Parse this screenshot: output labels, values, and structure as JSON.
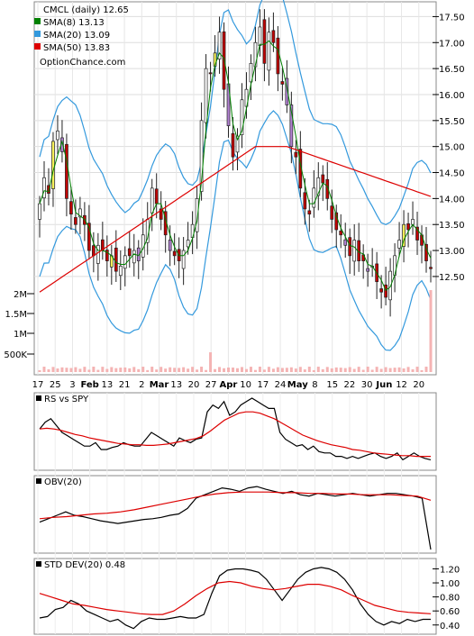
{
  "chart_data": {
    "type": "stock",
    "symbol": "CMCL",
    "title": "CMCL (daily) 12.65",
    "watermark": "OptionChance.com",
    "price_axis": {
      "ticks": [
        "17.50",
        "17.00",
        "16.50",
        "16.00",
        "15.50",
        "15.00",
        "14.50",
        "14.00",
        "13.50",
        "13.00",
        "12.50"
      ],
      "ylim": [
        12.1,
        17.75
      ]
    },
    "volume_axis": {
      "ticks": [
        "2M",
        "1.5M",
        "1M",
        "500K"
      ]
    },
    "x_tick_labels": [
      "17",
      "25",
      "3",
      "Feb",
      "13",
      "21",
      "2",
      "Mar",
      "13",
      "20",
      "27",
      "Apr",
      "10",
      "17",
      "24",
      "May",
      "8",
      "15",
      "22",
      "30",
      "Jun",
      "12",
      "20"
    ],
    "legend": [
      {
        "label": "SMA(8) 13.13",
        "color": "#008000"
      },
      {
        "label": "SMA(20) 13.09",
        "color": "#3399dd"
      },
      {
        "label": "SMA(50) 13.83",
        "color": "#dd0000"
      }
    ],
    "panels": [
      {
        "name": "RS vs SPY",
        "label": "RS vs SPY"
      },
      {
        "name": "OBV(20)",
        "label": "OBV(20)"
      },
      {
        "name": "STD DEV(20)",
        "label": "STD DEV(20) 0.48",
        "ticks": [
          "1.20",
          "1.00",
          "0.80",
          "0.60",
          "0.40"
        ],
        "ylim": [
          0.32,
          1.27
        ]
      }
    ],
    "closes": [
      13.9,
      14.4,
      14.1,
      15.1,
      15.3,
      14.9,
      14.0,
      13.7,
      13.5,
      13.8,
      13.5,
      13.0,
      12.9,
      13.1,
      13.0,
      12.8,
      12.9,
      12.6,
      12.7,
      12.9,
      12.9,
      13.0,
      12.8,
      13.3,
      13.6,
      14.2,
      13.9,
      13.6,
      13.3,
      13.0,
      12.9,
      12.8,
      13.0,
      13.2,
      13.5,
      14.0,
      15.5,
      16.5,
      16.4,
      16.8,
      17.2,
      16.1,
      15.4,
      14.8,
      15.2,
      15.9,
      16.1,
      16.6,
      17.0,
      17.3,
      16.6,
      17.2,
      17.0,
      16.4,
      16.2,
      15.8,
      15.0,
      14.8,
      14.2,
      13.8,
      13.7,
      14.2,
      14.4,
      14.3,
      14.0,
      13.6,
      13.4,
      13.3,
      13.1,
      12.9,
      13.2,
      12.8,
      12.8,
      12.6,
      12.7,
      12.4,
      12.2,
      12.1,
      12.6,
      12.9,
      13.2,
      13.5,
      13.4,
      13.6,
      13.2,
      13.1,
      12.8,
      12.65
    ],
    "rs_vs_spy": [
      0.55,
      0.65,
      0.7,
      0.6,
      0.5,
      0.45,
      0.4,
      0.35,
      0.3,
      0.3,
      0.35,
      0.25,
      0.25,
      0.28,
      0.3,
      0.35,
      0.32,
      0.3,
      0.3,
      0.4,
      0.5,
      0.45,
      0.4,
      0.35,
      0.3,
      0.42,
      0.38,
      0.35,
      0.4,
      0.42,
      0.8,
      0.9,
      0.85,
      0.95,
      0.75,
      0.8,
      0.9,
      0.95,
      1.0,
      0.95,
      0.9,
      0.85,
      0.85,
      0.5,
      0.4,
      0.35,
      0.3,
      0.32,
      0.25,
      0.3,
      0.22,
      0.2,
      0.2,
      0.15,
      0.15,
      0.12,
      0.15,
      0.12,
      0.15,
      0.18,
      0.2,
      0.15,
      0.12,
      0.15,
      0.2,
      0.1,
      0.15,
      0.2,
      0.15,
      0.12,
      0.1
    ],
    "rs_ma": [
      0.55,
      0.56,
      0.55,
      0.53,
      0.5,
      0.47,
      0.45,
      0.42,
      0.4,
      0.38,
      0.36,
      0.34,
      0.33,
      0.32,
      0.32,
      0.31,
      0.31,
      0.32,
      0.33,
      0.35,
      0.37,
      0.39,
      0.41,
      0.45,
      0.52,
      0.6,
      0.68,
      0.73,
      0.78,
      0.8,
      0.8,
      0.78,
      0.74,
      0.7,
      0.64,
      0.58,
      0.52,
      0.46,
      0.42,
      0.38,
      0.35,
      0.32,
      0.3,
      0.28,
      0.25,
      0.24,
      0.22,
      0.2,
      0.19,
      0.18,
      0.17,
      0.16,
      0.16,
      0.15,
      0.15,
      0.15
    ],
    "obv": [
      0.4,
      0.45,
      0.5,
      0.55,
      0.5,
      0.48,
      0.45,
      0.42,
      0.4,
      0.38,
      0.4,
      0.42,
      0.44,
      0.45,
      0.47,
      0.5,
      0.52,
      0.6,
      0.75,
      0.8,
      0.85,
      0.9,
      0.88,
      0.85,
      0.9,
      0.92,
      0.88,
      0.85,
      0.82,
      0.85,
      0.8,
      0.78,
      0.82,
      0.8,
      0.78,
      0.8,
      0.82,
      0.8,
      0.78,
      0.8,
      0.82,
      0.82,
      0.8,
      0.78,
      0.75,
      0.0
    ],
    "obv_ma": [
      0.45,
      0.47,
      0.48,
      0.5,
      0.52,
      0.53,
      0.55,
      0.58,
      0.62,
      0.66,
      0.7,
      0.74,
      0.78,
      0.81,
      0.83,
      0.84,
      0.84,
      0.84,
      0.83,
      0.83,
      0.82,
      0.82,
      0.81,
      0.81,
      0.8,
      0.8,
      0.8,
      0.79,
      0.78,
      0.72
    ],
    "std_dev": [
      0.5,
      0.52,
      0.62,
      0.65,
      0.75,
      0.7,
      0.6,
      0.55,
      0.5,
      0.45,
      0.48,
      0.4,
      0.35,
      0.45,
      0.5,
      0.48,
      0.48,
      0.5,
      0.52,
      0.5,
      0.5,
      0.55,
      0.85,
      1.1,
      1.18,
      1.2,
      1.2,
      1.18,
      1.15,
      1.05,
      0.9,
      0.75,
      0.9,
      1.05,
      1.15,
      1.2,
      1.22,
      1.2,
      1.15,
      1.05,
      0.9,
      0.7,
      0.55,
      0.45,
      0.4,
      0.45,
      0.42,
      0.48,
      0.45,
      0.48,
      0.48
    ],
    "std_ma": [
      0.85,
      0.8,
      0.75,
      0.7,
      0.68,
      0.65,
      0.62,
      0.6,
      0.58,
      0.56,
      0.55,
      0.55,
      0.6,
      0.7,
      0.82,
      0.92,
      1.0,
      1.02,
      1.0,
      0.95,
      0.92,
      0.9,
      0.92,
      0.95,
      0.98,
      0.98,
      0.95,
      0.9,
      0.82,
      0.75,
      0.68,
      0.64,
      0.6,
      0.58,
      0.57,
      0.56
    ]
  }
}
